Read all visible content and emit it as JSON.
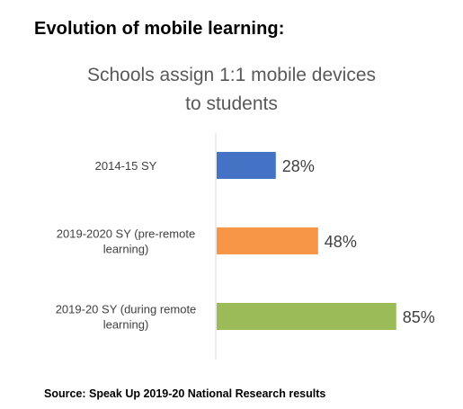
{
  "heading": "Evolution of mobile learning:",
  "chart_data": {
    "type": "bar",
    "orientation": "horizontal",
    "title_lines": [
      "Schools assign 1:1 mobile devices",
      "to students"
    ],
    "categories": [
      [
        "2014-15 SY"
      ],
      [
        "2019-2020 SY (pre-remote",
        "learning)"
      ],
      [
        "2019-20 SY (during remote",
        "learning)"
      ]
    ],
    "values": [
      28,
      48,
      85
    ],
    "data_labels": [
      "28%",
      "48%",
      "85%"
    ],
    "colors": [
      "#4472C4",
      "#F79646",
      "#9BBB59"
    ],
    "xlim": [
      0,
      100
    ],
    "grid": false,
    "legend": "none"
  },
  "source": "Source: Speak Up 2019-20 National Research results"
}
